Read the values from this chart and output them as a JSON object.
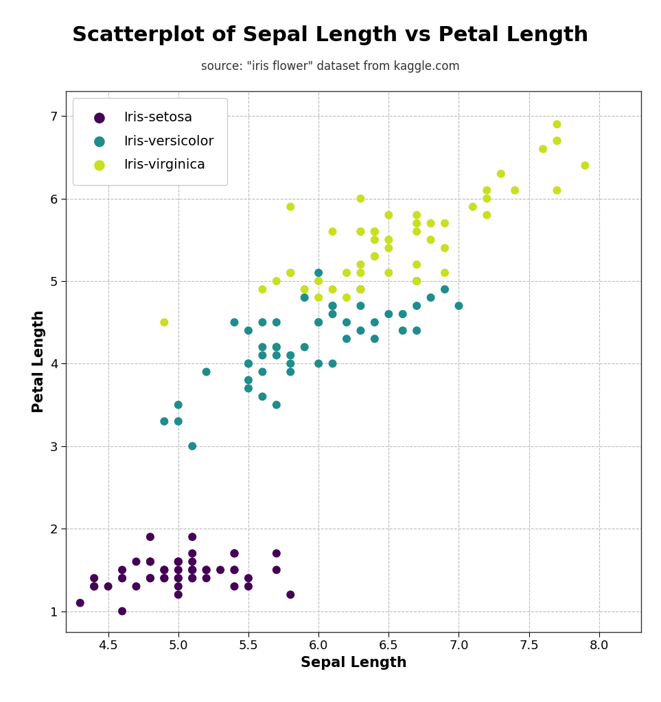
{
  "title": "Scatterplot of Sepal Length vs Petal Length",
  "subtitle": "source: \"iris flower\" dataset from kaggle.com",
  "xlabel": "Sepal Length",
  "ylabel": "Petal Length",
  "xlim": [
    4.2,
    8.3
  ],
  "ylim": [
    0.75,
    7.3
  ],
  "xticks": [
    4.5,
    5.0,
    5.5,
    6.0,
    6.5,
    7.0,
    7.5,
    8.0
  ],
  "yticks": [
    1,
    2,
    3,
    4,
    5,
    6,
    7
  ],
  "species_colors": {
    "Iris-setosa": "#440154",
    "Iris-versicolor": "#1f8d8b",
    "Iris-virginica": "#c8e020"
  },
  "setosa": {
    "sepal_length": [
      5.1,
      4.9,
      4.7,
      4.6,
      5.0,
      5.4,
      4.6,
      5.0,
      4.4,
      4.9,
      5.4,
      4.8,
      4.8,
      4.3,
      5.8,
      5.7,
      5.4,
      5.1,
      5.7,
      5.1,
      5.4,
      5.1,
      4.6,
      5.1,
      4.8,
      5.0,
      5.0,
      5.2,
      5.2,
      4.7,
      4.8,
      5.4,
      5.2,
      5.5,
      4.9,
      5.0,
      5.5,
      4.9,
      4.4,
      5.1,
      5.0,
      4.5,
      4.4,
      5.0,
      5.1,
      4.8,
      5.1,
      4.6,
      5.3,
      5.0
    ],
    "petal_length": [
      1.4,
      1.4,
      1.3,
      1.5,
      1.4,
      1.7,
      1.4,
      1.5,
      1.4,
      1.5,
      1.5,
      1.6,
      1.4,
      1.1,
      1.2,
      1.5,
      1.3,
      1.4,
      1.7,
      1.5,
      1.7,
      1.5,
      1.0,
      1.7,
      1.9,
      1.6,
      1.6,
      1.5,
      1.4,
      1.6,
      1.6,
      1.5,
      1.5,
      1.4,
      1.5,
      1.2,
      1.3,
      1.4,
      1.3,
      1.5,
      1.3,
      1.3,
      1.3,
      1.6,
      1.9,
      1.4,
      1.6,
      1.4,
      1.5,
      1.4
    ]
  },
  "versicolor": {
    "sepal_length": [
      7.0,
      6.4,
      6.9,
      5.5,
      6.5,
      5.7,
      6.3,
      4.9,
      6.6,
      5.2,
      5.0,
      5.9,
      6.0,
      6.1,
      5.6,
      6.7,
      5.6,
      5.8,
      6.2,
      5.6,
      5.9,
      6.1,
      6.3,
      6.1,
      6.4,
      6.6,
      6.8,
      6.7,
      6.0,
      5.7,
      5.5,
      5.5,
      5.8,
      6.0,
      5.4,
      6.0,
      6.7,
      6.3,
      5.6,
      5.5,
      5.5,
      6.1,
      5.8,
      5.0,
      5.6,
      5.7,
      5.7,
      6.2,
      5.1,
      5.7
    ],
    "petal_length": [
      4.7,
      4.5,
      4.9,
      4.0,
      4.6,
      4.5,
      4.7,
      3.3,
      4.6,
      3.9,
      3.5,
      4.2,
      4.0,
      4.7,
      3.6,
      4.4,
      4.5,
      4.1,
      4.5,
      3.9,
      4.8,
      4.0,
      4.9,
      4.7,
      4.3,
      4.4,
      4.8,
      5.0,
      4.5,
      3.5,
      3.8,
      3.7,
      3.9,
      5.1,
      4.5,
      4.5,
      4.7,
      4.4,
      4.1,
      4.0,
      4.4,
      4.6,
      4.0,
      3.3,
      4.2,
      4.2,
      4.2,
      4.3,
      3.0,
      4.1
    ]
  },
  "virginica": {
    "sepal_length": [
      6.3,
      5.8,
      7.1,
      6.3,
      6.5,
      7.6,
      4.9,
      7.3,
      6.7,
      7.2,
      6.5,
      6.4,
      6.8,
      5.7,
      5.8,
      6.4,
      6.5,
      7.7,
      7.7,
      6.0,
      6.9,
      5.6,
      7.7,
      6.3,
      6.7,
      7.2,
      6.2,
      6.1,
      6.4,
      7.2,
      7.4,
      7.9,
      6.4,
      6.3,
      6.1,
      7.7,
      6.3,
      6.4,
      6.0,
      6.9,
      6.7,
      6.9,
      5.8,
      6.8,
      6.7,
      6.7,
      6.3,
      6.5,
      6.2,
      5.9
    ],
    "petal_length": [
      6.0,
      5.1,
      5.9,
      5.6,
      5.8,
      6.6,
      4.5,
      6.3,
      5.8,
      6.1,
      5.1,
      5.3,
      5.5,
      5.0,
      5.1,
      5.3,
      5.5,
      6.7,
      6.9,
      5.0,
      5.7,
      4.9,
      6.7,
      4.9,
      5.7,
      6.0,
      4.8,
      4.9,
      5.6,
      5.8,
      6.1,
      6.4,
      5.6,
      5.1,
      5.6,
      6.1,
      5.6,
      5.5,
      4.8,
      5.4,
      5.6,
      5.1,
      5.9,
      5.7,
      5.2,
      5.0,
      5.2,
      5.4,
      5.1,
      4.9
    ]
  },
  "marker_size": 75,
  "title_fontsize": 22,
  "subtitle_fontsize": 12,
  "label_fontsize": 15,
  "tick_fontsize": 13,
  "legend_fontsize": 14,
  "grid_color": "#bbbbbb",
  "grid_linestyle": "--",
  "background_color": "#ffffff"
}
